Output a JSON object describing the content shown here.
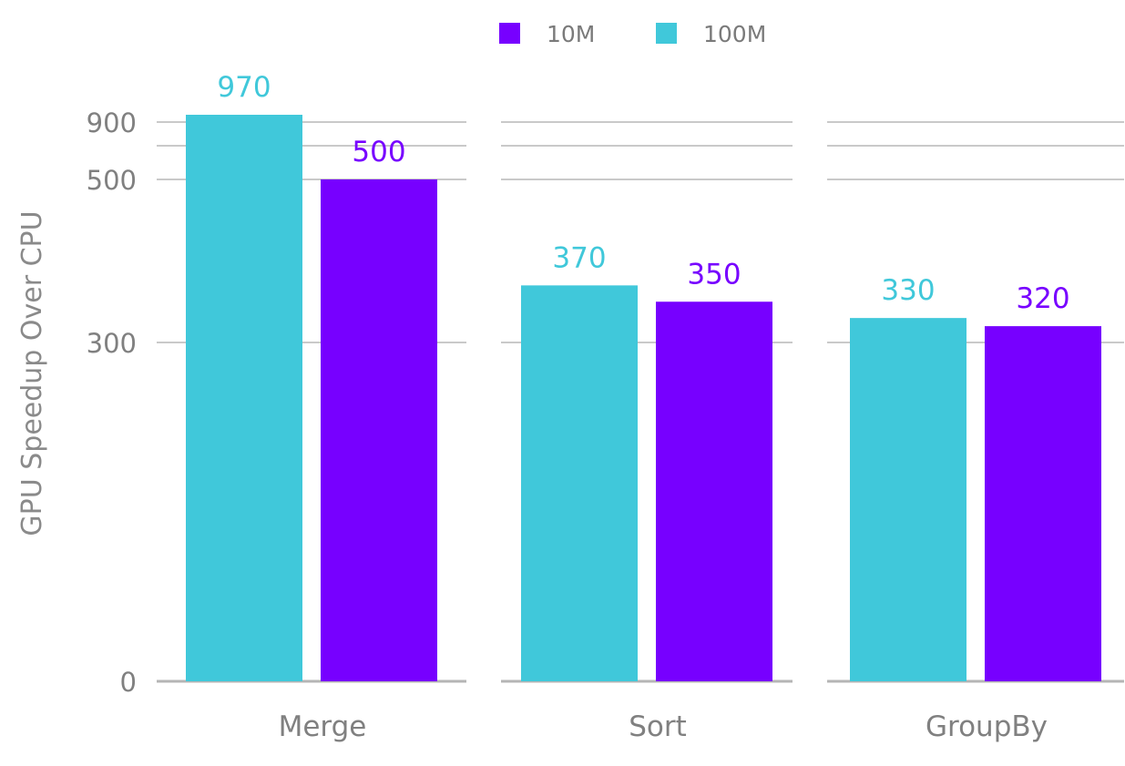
{
  "chart_data": {
    "type": "bar",
    "ylabel": "GPU Speedup Over CPU",
    "categories": [
      "Merge",
      "Sort",
      "GroupBy"
    ],
    "y_ticks": [
      0,
      300,
      500,
      900
    ],
    "grid": true,
    "legend_position": "top-center",
    "series": [
      {
        "name": "100M",
        "color": "#40c8da",
        "values": [
          970,
          370,
          330
        ],
        "labels": [
          "970",
          "370",
          "330"
        ]
      },
      {
        "name": "10M",
        "color": "#7700ff",
        "values": [
          500,
          350,
          320
        ],
        "labels": [
          "500",
          "350",
          "320"
        ]
      }
    ],
    "legend_order": [
      1,
      0
    ]
  }
}
